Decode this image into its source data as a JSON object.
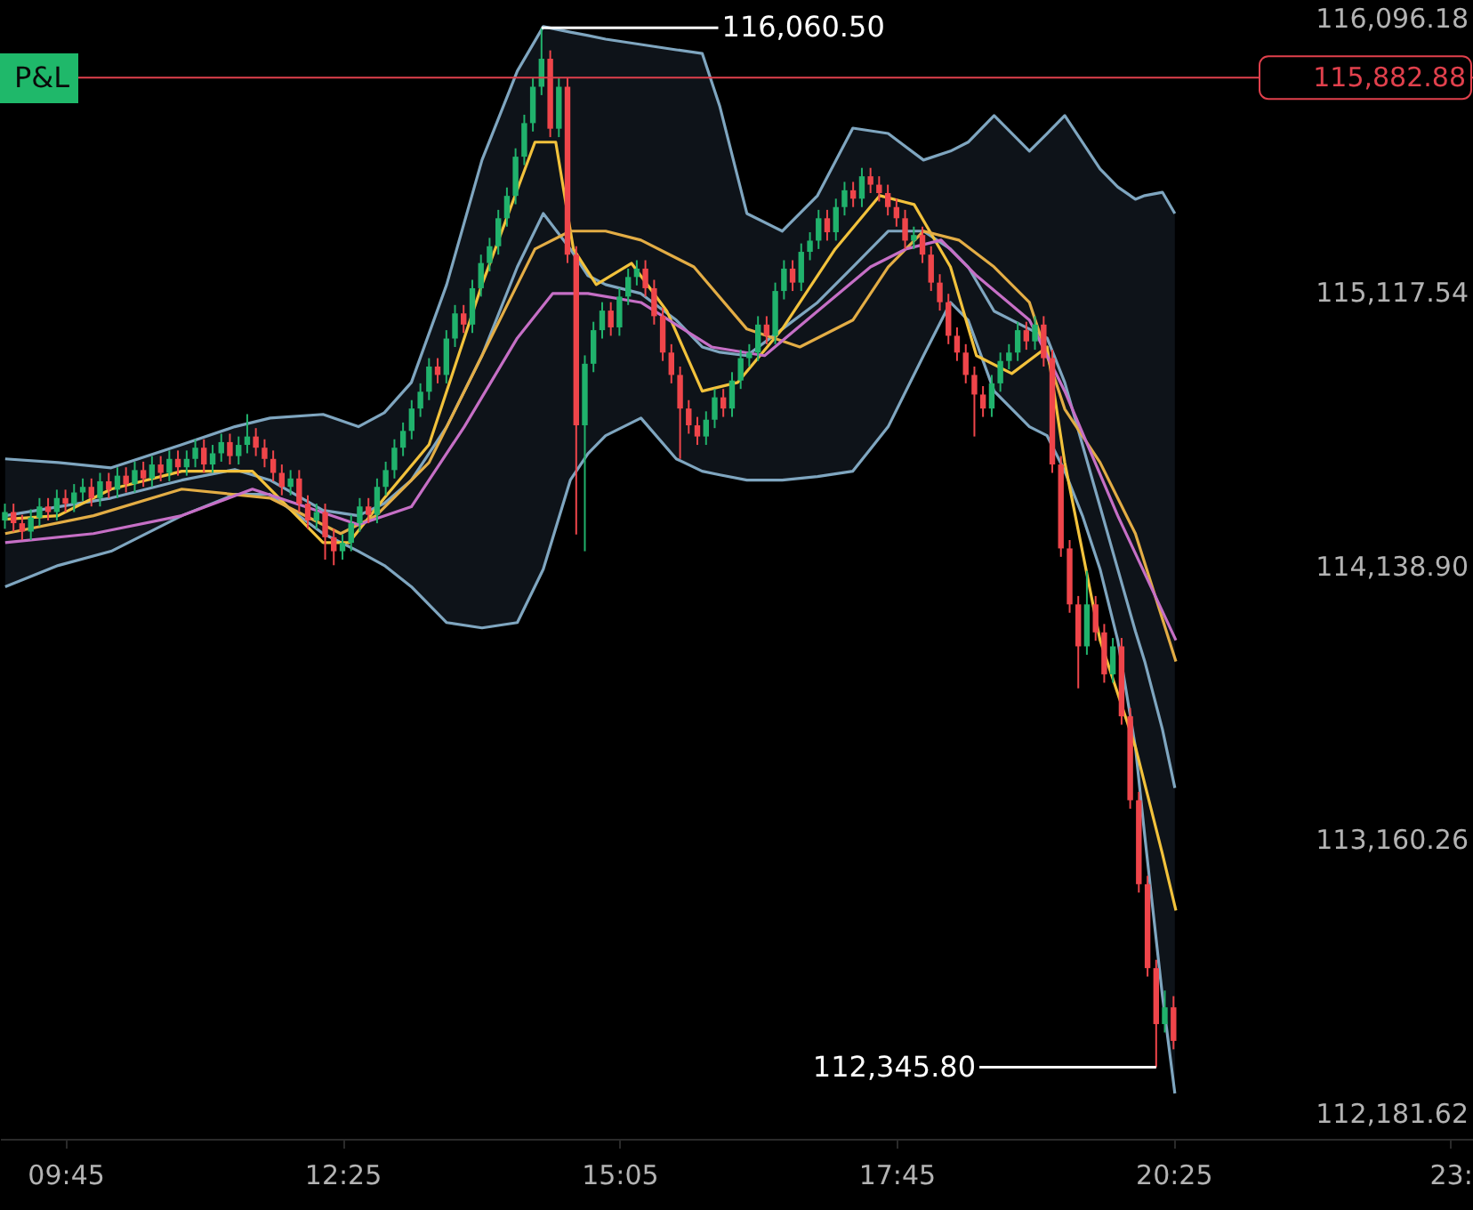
{
  "chart_data": {
    "type": "candlestick",
    "x": [
      9.167,
      9.25,
      9.333,
      9.417,
      9.5,
      9.583,
      9.667,
      9.75,
      9.833,
      9.917,
      10,
      10.083,
      10.167,
      10.25,
      10.333,
      10.417,
      10.5,
      10.583,
      10.667,
      10.75,
      10.833,
      10.917,
      11,
      11.083,
      11.167,
      11.25,
      11.333,
      11.417,
      11.5,
      11.583,
      11.667,
      11.75,
      11.833,
      11.917,
      12,
      12.083,
      12.167,
      12.25,
      12.333,
      12.417,
      12.5,
      12.583,
      12.667,
      12.75,
      12.833,
      12.917,
      13,
      13.083,
      13.167,
      13.25,
      13.333,
      13.417,
      13.5,
      13.583,
      13.667,
      13.75,
      13.833,
      13.917,
      14,
      14.083,
      14.167,
      14.25,
      14.333,
      14.417,
      14.5,
      14.583,
      14.667,
      14.75,
      14.833,
      14.917,
      15,
      15.083,
      15.167,
      15.25,
      15.333,
      15.417,
      15.5,
      15.583,
      15.667,
      15.75,
      15.833,
      15.917,
      16,
      16.083,
      16.167,
      16.25,
      16.333,
      16.417,
      16.5,
      16.583,
      16.667,
      16.75,
      16.833,
      16.917,
      17,
      17.083,
      17.167,
      17.25,
      17.333,
      17.417,
      17.5,
      17.583,
      17.667,
      17.75,
      17.833,
      17.917,
      18,
      18.083,
      18.167,
      18.25,
      18.333,
      18.417,
      18.5,
      18.583,
      18.667,
      18.75,
      18.833,
      18.917,
      19,
      19.083,
      19.167,
      19.25,
      19.333,
      19.417,
      19.5,
      19.583,
      19.667,
      19.75,
      19.833,
      19.917,
      20,
      20.083,
      20.167,
      20.25,
      20.333,
      20.417
    ],
    "ohlc": [
      [
        114300,
        114360,
        114270,
        114330
      ],
      [
        114330,
        114360,
        114260,
        114290
      ],
      [
        114290,
        114320,
        114230,
        114260
      ],
      [
        114260,
        114340,
        114230,
        114310
      ],
      [
        114310,
        114380,
        114280,
        114350
      ],
      [
        114350,
        114380,
        114300,
        114330
      ],
      [
        114330,
        114410,
        114300,
        114380
      ],
      [
        114380,
        114410,
        114330,
        114360
      ],
      [
        114360,
        114430,
        114330,
        114400
      ],
      [
        114400,
        114450,
        114370,
        114420
      ],
      [
        114420,
        114450,
        114350,
        114380
      ],
      [
        114380,
        114470,
        114350,
        114440
      ],
      [
        114440,
        114470,
        114380,
        114410
      ],
      [
        114410,
        114490,
        114380,
        114460
      ],
      [
        114460,
        114490,
        114400,
        114430
      ],
      [
        114430,
        114510,
        114400,
        114480
      ],
      [
        114480,
        114510,
        114420,
        114450
      ],
      [
        114450,
        114530,
        114420,
        114500
      ],
      [
        114500,
        114530,
        114440,
        114470
      ],
      [
        114470,
        114550,
        114440,
        114520
      ],
      [
        114520,
        114550,
        114460,
        114490
      ],
      [
        114490,
        114550,
        114460,
        114520
      ],
      [
        114520,
        114590,
        114490,
        114560
      ],
      [
        114560,
        114590,
        114470,
        114500
      ],
      [
        114500,
        114570,
        114470,
        114540
      ],
      [
        114540,
        114610,
        114510,
        114580
      ],
      [
        114580,
        114610,
        114500,
        114530
      ],
      [
        114530,
        114600,
        114500,
        114570
      ],
      [
        114570,
        114680,
        114540,
        114600
      ],
      [
        114600,
        114630,
        114530,
        114560
      ],
      [
        114560,
        114590,
        114490,
        114520
      ],
      [
        114520,
        114550,
        114440,
        114470
      ],
      [
        114470,
        114500,
        114390,
        114420
      ],
      [
        114420,
        114480,
        114390,
        114450
      ],
      [
        114450,
        114480,
        114330,
        114360
      ],
      [
        114360,
        114390,
        114270,
        114300
      ],
      [
        114300,
        114360,
        114270,
        114330
      ],
      [
        114330,
        114360,
        114160,
        114240
      ],
      [
        114240,
        114270,
        114140,
        114190
      ],
      [
        114190,
        114250,
        114160,
        114220
      ],
      [
        114220,
        114320,
        114190,
        114290
      ],
      [
        114290,
        114380,
        114260,
        114350
      ],
      [
        114350,
        114380,
        114290,
        114320
      ],
      [
        114320,
        114450,
        114290,
        114420
      ],
      [
        114420,
        114510,
        114390,
        114480
      ],
      [
        114480,
        114590,
        114450,
        114560
      ],
      [
        114560,
        114650,
        114530,
        114620
      ],
      [
        114620,
        114730,
        114590,
        114700
      ],
      [
        114700,
        114790,
        114670,
        114760
      ],
      [
        114760,
        114880,
        114730,
        114850
      ],
      [
        114850,
        114880,
        114790,
        114820
      ],
      [
        114820,
        114980,
        114790,
        114950
      ],
      [
        114950,
        115070,
        114920,
        115040
      ],
      [
        115040,
        115070,
        114970,
        115000
      ],
      [
        115000,
        115160,
        114970,
        115130
      ],
      [
        115130,
        115250,
        115100,
        115220
      ],
      [
        115220,
        115310,
        115190,
        115280
      ],
      [
        115280,
        115410,
        115250,
        115380
      ],
      [
        115380,
        115490,
        115350,
        115460
      ],
      [
        115460,
        115630,
        115430,
        115600
      ],
      [
        115600,
        115750,
        115570,
        115720
      ],
      [
        115720,
        115880,
        115690,
        115850
      ],
      [
        115850,
        116060.5,
        115820,
        115950
      ],
      [
        115950,
        115980,
        115670,
        115700
      ],
      [
        115700,
        115880,
        115670,
        115850
      ],
      [
        115850,
        115880,
        115220,
        115250
      ],
      [
        115250,
        115280,
        114250,
        114640
      ],
      [
        114640,
        114890,
        114190,
        114860
      ],
      [
        114860,
        115010,
        114830,
        114980
      ],
      [
        114980,
        115080,
        114950,
        115050
      ],
      [
        115050,
        115080,
        114960,
        114990
      ],
      [
        114990,
        115130,
        114960,
        115100
      ],
      [
        115100,
        115200,
        115070,
        115170
      ],
      [
        115170,
        115230,
        115140,
        115200
      ],
      [
        115200,
        115230,
        115100,
        115130
      ],
      [
        115130,
        115160,
        115000,
        115030
      ],
      [
        115030,
        115060,
        114870,
        114900
      ],
      [
        114900,
        114930,
        114790,
        114820
      ],
      [
        114820,
        114850,
        114520,
        114700
      ],
      [
        114700,
        114730,
        114610,
        114640
      ],
      [
        114640,
        114670,
        114570,
        114600
      ],
      [
        114600,
        114690,
        114570,
        114660
      ],
      [
        114660,
        114770,
        114630,
        114740
      ],
      [
        114740,
        114770,
        114670,
        114700
      ],
      [
        114700,
        114830,
        114670,
        114800
      ],
      [
        114800,
        114910,
        114770,
        114880
      ],
      [
        114880,
        114930,
        114850,
        114900
      ],
      [
        114900,
        115030,
        114870,
        115000
      ],
      [
        115000,
        115030,
        114930,
        114960
      ],
      [
        114960,
        115150,
        114930,
        115120
      ],
      [
        115120,
        115230,
        115090,
        115200
      ],
      [
        115200,
        115230,
        115120,
        115150
      ],
      [
        115150,
        115290,
        115120,
        115260
      ],
      [
        115260,
        115330,
        115230,
        115300
      ],
      [
        115300,
        115410,
        115270,
        115380
      ],
      [
        115380,
        115410,
        115300,
        115330
      ],
      [
        115330,
        115450,
        115300,
        115420
      ],
      [
        115420,
        115510,
        115390,
        115480
      ],
      [
        115480,
        115510,
        115420,
        115450
      ],
      [
        115450,
        115560,
        115420,
        115530
      ],
      [
        115530,
        115560,
        115470,
        115500
      ],
      [
        115500,
        115530,
        115440,
        115470
      ],
      [
        115470,
        115500,
        115390,
        115420
      ],
      [
        115420,
        115450,
        115350,
        115380
      ],
      [
        115380,
        115410,
        115270,
        115300
      ],
      [
        115300,
        115350,
        115270,
        115320
      ],
      [
        115320,
        115350,
        115220,
        115250
      ],
      [
        115250,
        115280,
        115120,
        115150
      ],
      [
        115150,
        115180,
        115050,
        115080
      ],
      [
        115080,
        115110,
        114930,
        114960
      ],
      [
        114960,
        114990,
        114870,
        114900
      ],
      [
        114900,
        114930,
        114790,
        114820
      ],
      [
        114820,
        114850,
        114600,
        114750
      ],
      [
        114750,
        114780,
        114670,
        114700
      ],
      [
        114700,
        114820,
        114670,
        114790
      ],
      [
        114790,
        114900,
        114760,
        114870
      ],
      [
        114870,
        114930,
        114840,
        114900
      ],
      [
        114900,
        115010,
        114870,
        114980
      ],
      [
        114980,
        115010,
        114910,
        114940
      ],
      [
        114940,
        115030,
        114910,
        115000
      ],
      [
        115000,
        115030,
        114850,
        114880
      ],
      [
        114880,
        114910,
        114470,
        114500
      ],
      [
        114500,
        114530,
        114170,
        114200
      ],
      [
        114200,
        114230,
        113970,
        114000
      ],
      [
        114000,
        114030,
        113700,
        113850
      ],
      [
        113850,
        114120,
        113820,
        114000
      ],
      [
        114000,
        114030,
        113870,
        113900
      ],
      [
        113900,
        113930,
        113720,
        113750
      ],
      [
        113750,
        113880,
        113720,
        113850
      ],
      [
        113850,
        113880,
        113570,
        113600
      ],
      [
        113600,
        113630,
        113270,
        113300
      ],
      [
        113300,
        113330,
        112970,
        113000
      ],
      [
        113000,
        113030,
        112670,
        112700
      ],
      [
        112700,
        112730,
        112345.8,
        112500
      ],
      [
        112500,
        112620,
        112470,
        112560
      ],
      [
        112560,
        112600,
        112410,
        112440
      ]
    ],
    "series": [
      {
        "type": "line",
        "color": "#7fa6c0",
        "x": [
          9.17,
          9.68,
          10.19,
          10.87,
          11.38,
          11.72,
          12.23,
          12.57,
          12.82,
          13.08,
          13.42,
          13.76,
          14.1,
          14.35,
          14.61,
          14.78,
          14.95,
          15.29,
          15.63,
          15.88,
          16.05,
          16.31,
          16.65,
          16.99,
          17.33,
          17.67,
          18.01,
          18.27,
          18.44,
          18.69,
          19.03,
          19.2,
          19.37,
          19.54,
          19.71,
          19.88,
          20.05,
          20.14,
          20.31,
          20.43
        ],
        "values": [
          114317,
          114349,
          114380,
          114444,
          114482,
          114444,
          114336,
          114317,
          114361,
          114444,
          114635,
          114889,
          115206,
          115397,
          115270,
          115175,
          115143,
          115111,
          115016,
          114920,
          114901,
          114889,
          114984,
          115079,
          115206,
          115334,
          115334,
          115270,
          115206,
          115048,
          114984,
          114952,
          114793,
          114571,
          114349,
          114126,
          113904,
          113796,
          113554,
          113344
        ],
        "upper": [
          114520,
          114507,
          114488,
          114571,
          114635,
          114666,
          114679,
          114635,
          114685,
          114793,
          115143,
          115588,
          115906,
          116065,
          116045,
          116033,
          116020,
          116001,
          115982,
          115969,
          115779,
          115397,
          115334,
          115461,
          115702,
          115683,
          115588,
          115620,
          115652,
          115747,
          115620,
          115683,
          115747,
          115652,
          115556,
          115492,
          115448,
          115461,
          115473,
          115397
        ],
        "lower": [
          114063,
          114139,
          114190,
          114317,
          114393,
          114393,
          114253,
          114190,
          114139,
          114063,
          113935,
          113916,
          113935,
          114126,
          114444,
          114539,
          114603,
          114666,
          114520,
          114476,
          114463,
          114444,
          114444,
          114457,
          114476,
          114635,
          114889,
          115079,
          115016,
          114762,
          114635,
          114603,
          114476,
          114317,
          114126,
          113872,
          113491,
          113173,
          112601,
          112252
        ]
      },
      {
        "type": "line",
        "color": "#7fa6c0",
        "x": [
          9.17,
          9.68,
          10.19,
          10.87,
          11.38,
          11.72,
          12.23,
          12.57,
          12.82,
          13.08,
          13.42,
          13.76,
          14.1,
          14.35,
          14.61,
          14.78,
          14.95,
          15.29,
          15.63,
          15.88,
          16.05,
          16.31,
          16.65,
          16.99,
          17.33,
          17.67,
          18.01,
          18.27,
          18.44,
          18.69,
          19.03,
          19.2,
          19.37,
          19.54,
          19.71,
          19.88,
          20.05,
          20.14,
          20.31,
          20.43
        ],
        "values": [
          114520,
          114507,
          114488,
          114571,
          114635,
          114666,
          114679,
          114635,
          114685,
          114793,
          115143,
          115588,
          115906,
          116065,
          116045,
          116033,
          116020,
          116001,
          115982,
          115969,
          115779,
          115397,
          115334,
          115461,
          115702,
          115683,
          115588,
          115620,
          115652,
          115747,
          115620,
          115683,
          115747,
          115652,
          115556,
          115492,
          115448,
          115461,
          115473,
          115397
        ]
      },
      {
        "type": "line",
        "color": "#7fa6c0",
        "x": [
          9.17,
          9.68,
          10.19,
          10.87,
          11.38,
          11.72,
          12.23,
          12.57,
          12.82,
          13.08,
          13.42,
          13.76,
          14.1,
          14.35,
          14.61,
          14.78,
          14.95,
          15.29,
          15.63,
          15.88,
          16.05,
          16.31,
          16.65,
          16.99,
          17.33,
          17.67,
          18.01,
          18.27,
          18.44,
          18.69,
          19.03,
          19.2,
          19.37,
          19.54,
          19.71,
          19.88,
          20.05,
          20.14,
          20.31,
          20.43
        ],
        "values": [
          114063,
          114139,
          114190,
          114317,
          114393,
          114393,
          114253,
          114190,
          114139,
          114063,
          113935,
          113916,
          113935,
          114126,
          114444,
          114539,
          114603,
          114666,
          114520,
          114476,
          114463,
          114444,
          114444,
          114457,
          114476,
          114635,
          114889,
          115079,
          115016,
          114762,
          114635,
          114603,
          114476,
          114317,
          114126,
          113872,
          113491,
          113173,
          112601,
          112252
        ]
      },
      {
        "type": "line",
        "color": "#f2c23c",
        "x": [
          9.17,
          9.68,
          10.19,
          10.87,
          11.55,
          11.89,
          12.23,
          12.48,
          12.82,
          13.25,
          13.76,
          14.27,
          14.47,
          14.64,
          14.86,
          15.2,
          15.54,
          15.88,
          16.22,
          16.65,
          17.16,
          17.59,
          17.92,
          18.27,
          18.52,
          18.86,
          19.2,
          19.37,
          19.71,
          20.05,
          20.31,
          20.44
        ],
        "values": [
          114304,
          114317,
          114412,
          114476,
          114476,
          114349,
          114221,
          114221,
          114380,
          114571,
          115143,
          115652,
          115652,
          115270,
          115143,
          115219,
          115048,
          114762,
          114793,
          114984,
          115270,
          115461,
          115429,
          115206,
          114889,
          114825,
          114920,
          114507,
          113872,
          113491,
          113109,
          112906
        ]
      },
      {
        "type": "line",
        "color": "#e3ad45",
        "x": [
          9.17,
          10.02,
          10.87,
          11.72,
          12.4,
          12.74,
          13.25,
          13.76,
          14.27,
          14.61,
          14.95,
          15.29,
          15.8,
          16.31,
          16.82,
          17.33,
          17.67,
          18.01,
          18.35,
          18.69,
          19.03,
          19.37,
          19.71,
          20.05,
          20.44
        ],
        "values": [
          114253,
          114317,
          114412,
          114380,
          114253,
          114317,
          114507,
          114889,
          115270,
          115334,
          115334,
          115302,
          115206,
          114984,
          114920,
          115016,
          115206,
          115334,
          115302,
          115206,
          115079,
          114698,
          114507,
          114253,
          113796
        ]
      },
      {
        "type": "line",
        "color": "#c66fc6",
        "x": [
          9.17,
          10.02,
          10.87,
          11.55,
          12.06,
          12.57,
          13.08,
          13.59,
          14.1,
          14.44,
          14.78,
          15.29,
          15.97,
          16.48,
          16.99,
          17.5,
          17.84,
          18.18,
          18.52,
          19.03,
          19.37,
          19.88,
          20.44
        ],
        "values": [
          114221,
          114253,
          114317,
          114412,
          114349,
          114285,
          114349,
          114635,
          114952,
          115111,
          115111,
          115079,
          114920,
          114889,
          115048,
          115206,
          115270,
          115302,
          115175,
          115016,
          114762,
          114317,
          113872
        ]
      }
    ],
    "xlim": [
      9.12,
      23.3
    ],
    "xticks": [
      {
        "value": 9.75,
        "label": "09:45"
      },
      {
        "value": 12.417,
        "label": "12:25"
      },
      {
        "value": 15.083,
        "label": "15:05"
      },
      {
        "value": 17.75,
        "label": "17:45"
      },
      {
        "value": 20.417,
        "label": "20:25"
      },
      {
        "value": 23.083,
        "label": "23:"
      }
    ],
    "ylim": [
      112090,
      116160
    ],
    "yticks": [
      {
        "value": 112181.62,
        "label": "112,181.62"
      },
      {
        "value": 113160.26,
        "label": "113,160.26"
      },
      {
        "value": 114138.9,
        "label": "114,138.90"
      },
      {
        "value": 115117.54,
        "label": "115,117.54"
      },
      {
        "value": 116096.18,
        "label": "116,096.18"
      }
    ],
    "ref_lines": [
      {
        "axis": "y",
        "value": 115882.88,
        "label": "115,882.88",
        "color": "#e0404c"
      }
    ],
    "annotations": [
      "P&L",
      {
        "text": "116,060.50",
        "x": 14.333,
        "y": 116060.5
      },
      {
        "text": "112,345.80",
        "x": 20.25,
        "y": 112345.8
      }
    ],
    "grid": false,
    "line_style": "solid"
  }
}
